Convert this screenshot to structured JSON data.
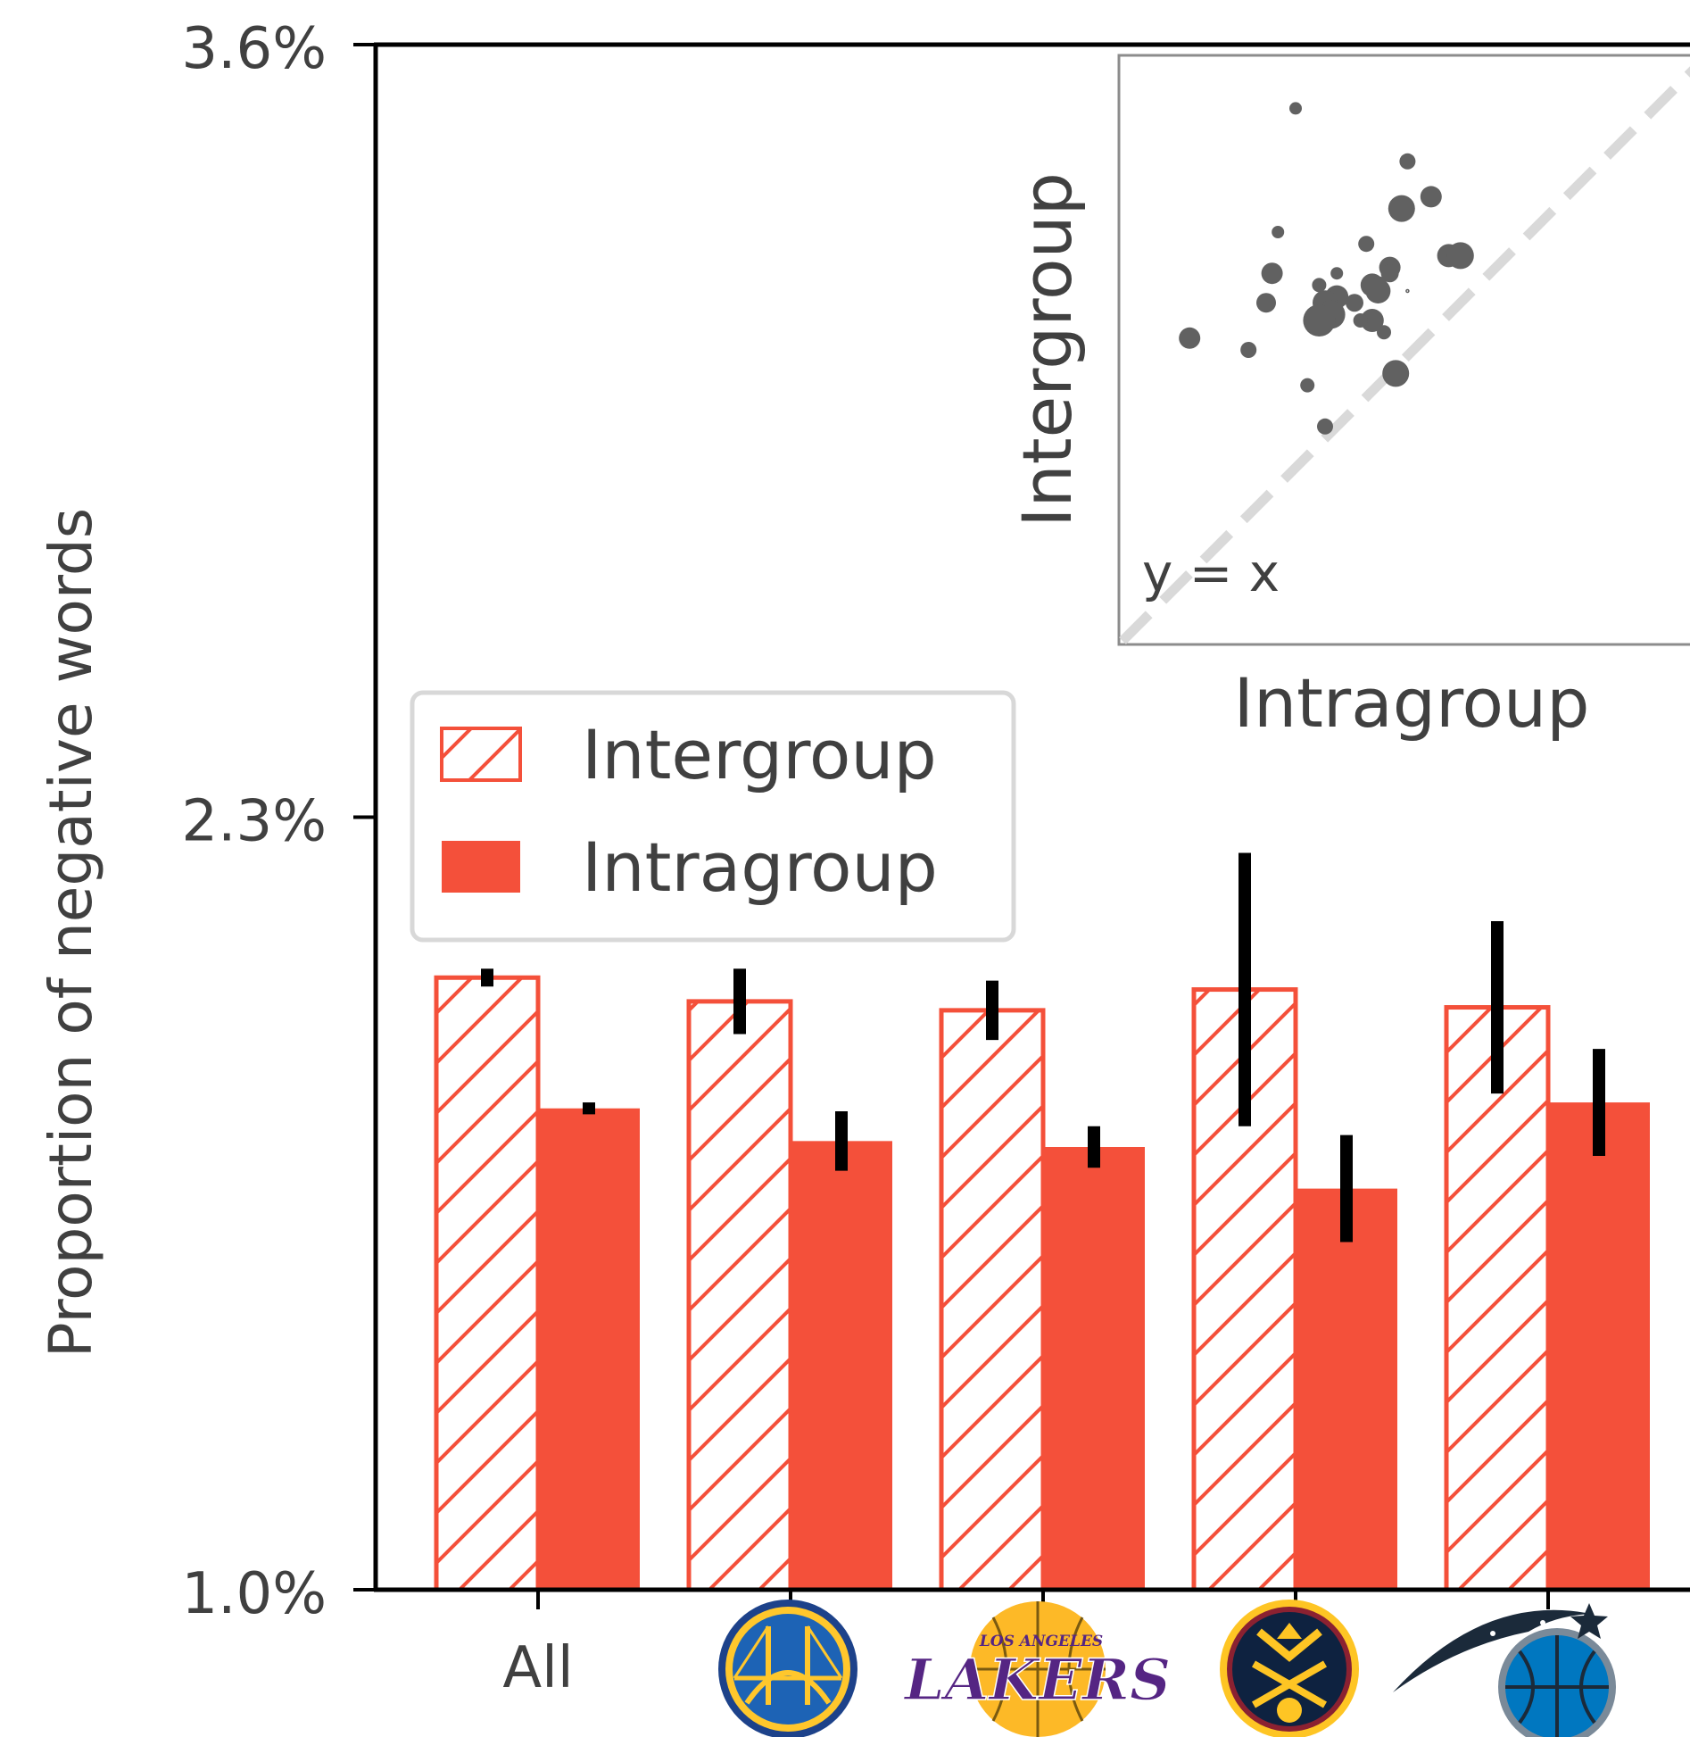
{
  "chart_data": [
    {
      "type": "bar",
      "categories": [
        "All",
        "Golden State Warriors",
        "Los Angeles Lakers",
        "Denver Nuggets",
        "Orlando Magic"
      ],
      "category_tick_labels": [
        "All",
        "",
        "",
        "",
        ""
      ],
      "category_icons": [
        "",
        "warriors-logo-icon",
        "lakers-logo-icon",
        "nuggets-logo-icon",
        "magic-logo-icon"
      ],
      "ylabel": "Proportion of negative words",
      "ylim": [
        1.0,
        3.6
      ],
      "yticks": [
        1.0,
        2.3,
        3.6
      ],
      "ytick_labels": [
        "1.0%",
        "2.3%",
        "3.6%"
      ],
      "legend_position": "center-left",
      "series": [
        {
          "name": "Intergroup",
          "style": "hatched",
          "values": [
            2.03,
            1.99,
            1.975,
            2.01,
            1.98
          ],
          "errors": [
            0.015,
            0.055,
            0.05,
            0.23,
            0.145
          ]
        },
        {
          "name": "Intragroup",
          "style": "solid",
          "values": [
            1.81,
            1.755,
            1.745,
            1.675,
            1.82
          ],
          "errors": [
            0.01,
            0.05,
            0.035,
            0.09,
            0.09
          ]
        }
      ],
      "colors": {
        "bar": "#f4503a",
        "error": "#000000",
        "axis": "#000000",
        "text": "#404040"
      }
    },
    {
      "type": "scatter",
      "xlabel": "Intragroup",
      "ylabel": "Intergroup",
      "xlim": [
        0,
        100
      ],
      "ylim": [
        0,
        100
      ],
      "annotation": "y = x",
      "reference_line": "diagonal",
      "points": [
        {
          "x": 30,
          "y": 91,
          "size": 7
        },
        {
          "x": 49,
          "y": 82,
          "size": 9
        },
        {
          "x": 53,
          "y": 76,
          "size": 12
        },
        {
          "x": 48,
          "y": 74,
          "size": 15
        },
        {
          "x": 27,
          "y": 70,
          "size": 7
        },
        {
          "x": 42,
          "y": 68,
          "size": 9
        },
        {
          "x": 56,
          "y": 66,
          "size": 13
        },
        {
          "x": 58,
          "y": 66,
          "size": 15
        },
        {
          "x": 26,
          "y": 63,
          "size": 12
        },
        {
          "x": 37,
          "y": 63,
          "size": 7
        },
        {
          "x": 46,
          "y": 64,
          "size": 12
        },
        {
          "x": 46,
          "y": 63,
          "size": 10
        },
        {
          "x": 34,
          "y": 61,
          "size": 8
        },
        {
          "x": 43,
          "y": 61,
          "size": 13
        },
        {
          "x": 44,
          "y": 61,
          "size": 10
        },
        {
          "x": 44,
          "y": 60,
          "size": 14
        },
        {
          "x": 49,
          "y": 60,
          "size": 1.5
        },
        {
          "x": 37,
          "y": 59,
          "size": 13
        },
        {
          "x": 35,
          "y": 58,
          "size": 14
        },
        {
          "x": 40,
          "y": 58,
          "size": 10
        },
        {
          "x": 25,
          "y": 58,
          "size": 11
        },
        {
          "x": 36,
          "y": 56,
          "size": 16
        },
        {
          "x": 34,
          "y": 55,
          "size": 18
        },
        {
          "x": 43,
          "y": 55,
          "size": 13
        },
        {
          "x": 41,
          "y": 55,
          "size": 8
        },
        {
          "x": 45,
          "y": 53,
          "size": 8
        },
        {
          "x": 12,
          "y": 52,
          "size": 12
        },
        {
          "x": 22,
          "y": 50,
          "size": 9
        },
        {
          "x": 47,
          "y": 46,
          "size": 15
        },
        {
          "x": 32,
          "y": 44,
          "size": 8
        },
        {
          "x": 35,
          "y": 37,
          "size": 9
        }
      ],
      "colors": {
        "point": "#616161",
        "reference": "#d9d9d9",
        "frame": "#8c8c8c"
      }
    }
  ]
}
